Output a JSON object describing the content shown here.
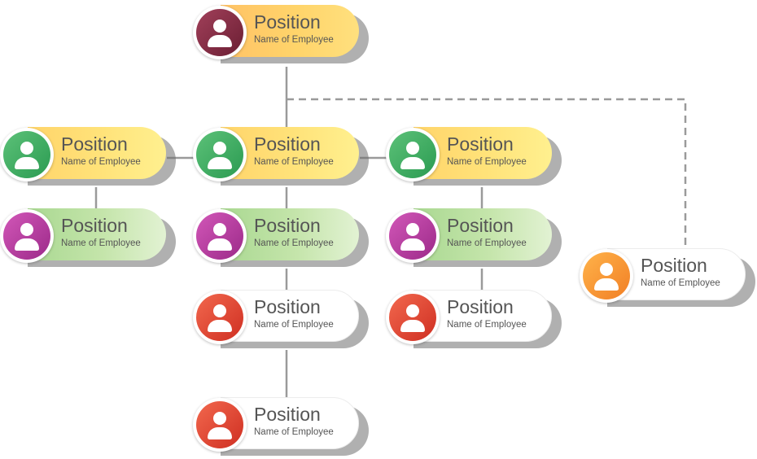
{
  "chart": {
    "nodes": [
      {
        "id": "n1",
        "position": "Position",
        "name": "Name of Employee",
        "avatar": "person-icon",
        "avatar_color": "#7a2338",
        "pill_color": "yellow"
      },
      {
        "id": "n2",
        "position": "Position",
        "name": "Name of Employee",
        "avatar": "person-icon",
        "avatar_color": "#33a65a",
        "pill_color": "yellow"
      },
      {
        "id": "n3",
        "position": "Position",
        "name": "Name of Employee",
        "avatar": "person-icon",
        "avatar_color": "#33a65a",
        "pill_color": "yellow"
      },
      {
        "id": "n4",
        "position": "Position",
        "name": "Name of Employee",
        "avatar": "person-icon",
        "avatar_color": "#33a65a",
        "pill_color": "yellow"
      },
      {
        "id": "n5",
        "position": "Position",
        "name": "Name of Employee",
        "avatar": "person-icon",
        "avatar_color": "#b33aa2",
        "pill_color": "green"
      },
      {
        "id": "n6",
        "position": "Position",
        "name": "Name of Employee",
        "avatar": "person-icon",
        "avatar_color": "#b33aa2",
        "pill_color": "green"
      },
      {
        "id": "n7",
        "position": "Position",
        "name": "Name of Employee",
        "avatar": "person-icon",
        "avatar_color": "#b33aa2",
        "pill_color": "green"
      },
      {
        "id": "n8",
        "position": "Position",
        "name": "Name of Employee",
        "avatar": "person-icon",
        "avatar_color": "#e0442f",
        "pill_color": "white"
      },
      {
        "id": "n9",
        "position": "Position",
        "name": "Name of Employee",
        "avatar": "person-icon",
        "avatar_color": "#e0442f",
        "pill_color": "white"
      },
      {
        "id": "n10",
        "position": "Position",
        "name": "Name of Employee",
        "avatar": "person-icon",
        "avatar_color": "#e0442f",
        "pill_color": "white"
      },
      {
        "id": "n11",
        "position": "Position",
        "name": "Name of Employee",
        "avatar": "person-icon",
        "avatar_color": "#f5962e",
        "pill_color": "white"
      }
    ],
    "edges": [
      {
        "from": "n1",
        "to": "n3",
        "style": "solid"
      },
      {
        "from": "n2",
        "to": "n3",
        "style": "solid"
      },
      {
        "from": "n3",
        "to": "n4",
        "style": "solid"
      },
      {
        "from": "n2",
        "to": "n5",
        "style": "solid"
      },
      {
        "from": "n3",
        "to": "n6",
        "style": "solid"
      },
      {
        "from": "n4",
        "to": "n7",
        "style": "solid"
      },
      {
        "from": "n6",
        "to": "n8",
        "style": "solid"
      },
      {
        "from": "n7",
        "to": "n9",
        "style": "solid"
      },
      {
        "from": "n8",
        "to": "n10",
        "style": "solid"
      },
      {
        "from": "n1",
        "to": "n11",
        "style": "dashed"
      }
    ],
    "colors": {
      "connector": "#9a9a9a",
      "text": "#555555"
    }
  }
}
